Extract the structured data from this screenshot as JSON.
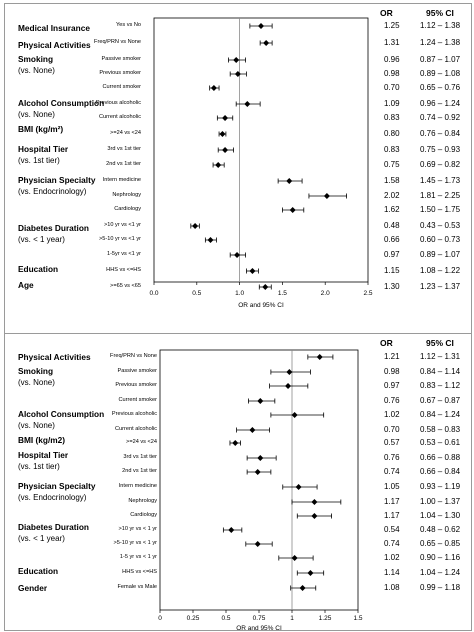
{
  "chart_data": [
    {
      "type": "forest",
      "panel_label": "A",
      "col_headers": {
        "or": "OR",
        "ci": "95% CI"
      },
      "xlabel": "OR and 95% CI",
      "xlim": [
        0,
        2.5
      ],
      "xticks": [
        "0.0",
        "0.5",
        "1.0",
        "1.5",
        "2.0",
        "2.5"
      ],
      "reference_line": 1.0,
      "groups": [
        {
          "title": "Medical Insurance",
          "rows": [
            {
              "label": "Yes vs No",
              "or": 1.25,
              "lo": 1.12,
              "hi": 1.38,
              "or_text": "1.25",
              "ci_text": "1.12 – 1.38"
            }
          ]
        },
        {
          "title": "Physical Activities",
          "rows": [
            {
              "label": "Freq/PRN vs None",
              "or": 1.31,
              "lo": 1.24,
              "hi": 1.38,
              "or_text": "1.31",
              "ci_text": "1.24 – 1.38"
            }
          ]
        },
        {
          "title": "Smoking",
          "subtitle": "(vs. None)",
          "rows": [
            {
              "label": "Passive smoker",
              "or": 0.96,
              "lo": 0.87,
              "hi": 1.07,
              "or_text": "0.96",
              "ci_text": "0.87 – 1.07"
            },
            {
              "label": "Previous smoker",
              "or": 0.98,
              "lo": 0.89,
              "hi": 1.08,
              "or_text": "0.98",
              "ci_text": "0.89 – 1.08"
            },
            {
              "label": "Current smoker",
              "or": 0.7,
              "lo": 0.65,
              "hi": 0.76,
              "or_text": "0.70",
              "ci_text": "0.65 – 0.76"
            }
          ]
        },
        {
          "title": "Alcohol Consumption",
          "subtitle": "(vs. None)",
          "rows": [
            {
              "label": "Previous alcoholic",
              "or": 1.09,
              "lo": 0.96,
              "hi": 1.24,
              "or_text": "1.09",
              "ci_text": "0.96 – 1.24"
            },
            {
              "label": "Current alcoholic",
              "or": 0.83,
              "lo": 0.74,
              "hi": 0.92,
              "or_text": "0.83",
              "ci_text": "0.74 – 0.92"
            }
          ]
        },
        {
          "title": "BMI (kg/m²)",
          "rows": [
            {
              "label": ">=24 vs <24",
              "or": 0.8,
              "lo": 0.76,
              "hi": 0.84,
              "or_text": "0.80",
              "ci_text": "0.76 – 0.84"
            }
          ]
        },
        {
          "title": "Hospital Tier",
          "subtitle": "(vs. 1st tier)",
          "rows": [
            {
              "label": "3rd vs 1st tier",
              "or": 0.83,
              "lo": 0.75,
              "hi": 0.93,
              "or_text": "0.83",
              "ci_text": "0.75 – 0.93"
            },
            {
              "label": "2nd vs 1st tier",
              "or": 0.75,
              "lo": 0.69,
              "hi": 0.82,
              "or_text": "0.75",
              "ci_text": "0.69 – 0.82"
            }
          ]
        },
        {
          "title": "Physician Specialty",
          "subtitle": "(vs. Endocrinology)",
          "rows": [
            {
              "label": "Intern medicine",
              "or": 1.58,
              "lo": 1.45,
              "hi": 1.73,
              "or_text": "1.58",
              "ci_text": "1.45 – 1.73"
            },
            {
              "label": "Nephrology",
              "or": 2.02,
              "lo": 1.81,
              "hi": 2.25,
              "or_text": "2.02",
              "ci_text": "1.81 – 2.25"
            },
            {
              "label": "Cardiology",
              "or": 1.62,
              "lo": 1.5,
              "hi": 1.75,
              "or_text": "1.62",
              "ci_text": "1.50 – 1.75"
            }
          ]
        },
        {
          "title": "Diabetes Duration",
          "subtitle": "(vs. < 1 year)",
          "rows": [
            {
              "label": ">10 yr vs <1 yr",
              "or": 0.48,
              "lo": 0.43,
              "hi": 0.53,
              "or_text": "0.48",
              "ci_text": "0.43 – 0.53"
            },
            {
              "label": ">5-10 yr vs <1 yr",
              "or": 0.66,
              "lo": 0.6,
              "hi": 0.73,
              "or_text": "0.66",
              "ci_text": "0.60 – 0.73"
            },
            {
              "label": "1-5yr vs <1 yr",
              "or": 0.97,
              "lo": 0.89,
              "hi": 1.07,
              "or_text": "0.97",
              "ci_text": "0.89 – 1.07"
            }
          ]
        },
        {
          "title": "Education",
          "rows": [
            {
              "label": "HHS vs <=HS",
              "or": 1.15,
              "lo": 1.08,
              "hi": 1.22,
              "or_text": "1.15",
              "ci_text": "1.08 – 1.22"
            }
          ]
        },
        {
          "title": "Age",
          "rows": [
            {
              "label": ">=65 vs <65",
              "or": 1.3,
              "lo": 1.23,
              "hi": 1.37,
              "or_text": "1.30",
              "ci_text": "1.23 – 1.37"
            }
          ]
        }
      ]
    },
    {
      "type": "forest",
      "panel_label": "B",
      "col_headers": {
        "or": "OR",
        "ci": "95% CI"
      },
      "xlabel": "OR and 95% CI",
      "xlim": [
        0,
        1.5
      ],
      "xticks": [
        "0",
        "0.25",
        "0.5",
        "0.75",
        "1",
        "1.25",
        "1.5"
      ],
      "reference_line": 1.0,
      "groups": [
        {
          "title": "Physical Activities",
          "rows": [
            {
              "label": "Freq/PRN vs None",
              "or": 1.21,
              "lo": 1.12,
              "hi": 1.31,
              "or_text": "1.21",
              "ci_text": "1.12 – 1.31"
            }
          ]
        },
        {
          "title": "Smoking",
          "subtitle": "(vs. None)",
          "rows": [
            {
              "label": "Passive smoker",
              "or": 0.98,
              "lo": 0.84,
              "hi": 1.14,
              "or_text": "0.98",
              "ci_text": "0.84 – 1.14"
            },
            {
              "label": "Previous smoker",
              "or": 0.97,
              "lo": 0.83,
              "hi": 1.12,
              "or_text": "0.97",
              "ci_text": "0.83 – 1.12"
            },
            {
              "label": "Current smoker",
              "or": 0.76,
              "lo": 0.67,
              "hi": 0.87,
              "or_text": "0.76",
              "ci_text": "0.67 – 0.87"
            }
          ]
        },
        {
          "title": "Alcohol Consumption",
          "subtitle": "(vs. None)",
          "rows": [
            {
              "label": "Previous alcoholic",
              "or": 1.02,
              "lo": 0.84,
              "hi": 1.24,
              "or_text": "1.02",
              "ci_text": "0.84 – 1.24"
            },
            {
              "label": "Current alcoholic",
              "or": 0.7,
              "lo": 0.58,
              "hi": 0.83,
              "or_text": "0.70",
              "ci_text": "0.58 – 0.83"
            }
          ]
        },
        {
          "title": "BMI (kg/m2)",
          "rows": [
            {
              "label": ">=24 vs <24",
              "or": 0.57,
              "lo": 0.53,
              "hi": 0.61,
              "or_text": "0.57",
              "ci_text": "0.53 – 0.61"
            }
          ]
        },
        {
          "title": "Hospital Tier",
          "subtitle": "(vs. 1st tier)",
          "rows": [
            {
              "label": "3rd vs 1st tier",
              "or": 0.76,
              "lo": 0.66,
              "hi": 0.88,
              "or_text": "0.76",
              "ci_text": "0.66 – 0.88"
            },
            {
              "label": "2nd vs 1st tier",
              "or": 0.74,
              "lo": 0.66,
              "hi": 0.84,
              "or_text": "0.74",
              "ci_text": "0.66 – 0.84"
            }
          ]
        },
        {
          "title": "Physician Specialty",
          "subtitle": "(vs. Endocrinology)",
          "rows": [
            {
              "label": "Intern medicine",
              "or": 1.05,
              "lo": 0.93,
              "hi": 1.19,
              "or_text": "1.05",
              "ci_text": "0.93 – 1.19"
            },
            {
              "label": "Nephrology",
              "or": 1.17,
              "lo": 1.0,
              "hi": 1.37,
              "or_text": "1.17",
              "ci_text": "1.00 – 1.37"
            },
            {
              "label": "Cardiology",
              "or": 1.17,
              "lo": 1.04,
              "hi": 1.3,
              "or_text": "1.17",
              "ci_text": "1.04 – 1.30"
            }
          ]
        },
        {
          "title": "Diabetes Duration",
          "subtitle": "(vs. < 1 year)",
          "rows": [
            {
              "label": ">10 yr vs < 1 yr",
              "or": 0.54,
              "lo": 0.48,
              "hi": 0.62,
              "or_text": "0.54",
              "ci_text": "0.48 – 0.62"
            },
            {
              "label": ">5-10 yr vs < 1 yr",
              "or": 0.74,
              "lo": 0.65,
              "hi": 0.85,
              "or_text": "0.74",
              "ci_text": "0.65 – 0.85"
            },
            {
              "label": "1-5 yr vs < 1 yr",
              "or": 1.02,
              "lo": 0.9,
              "hi": 1.16,
              "or_text": "1.02",
              "ci_text": "0.90 – 1.16"
            }
          ]
        },
        {
          "title": "Education",
          "rows": [
            {
              "label": "HHS vs <=HS",
              "or": 1.14,
              "lo": 1.04,
              "hi": 1.24,
              "or_text": "1.14",
              "ci_text": "1.04 – 1.24"
            }
          ]
        },
        {
          "title": "Gender",
          "rows": [
            {
              "label": "Female vs Male",
              "or": 1.08,
              "lo": 0.99,
              "hi": 1.18,
              "or_text": "1.08",
              "ci_text": "0.99 – 1.18"
            }
          ]
        }
      ]
    }
  ]
}
